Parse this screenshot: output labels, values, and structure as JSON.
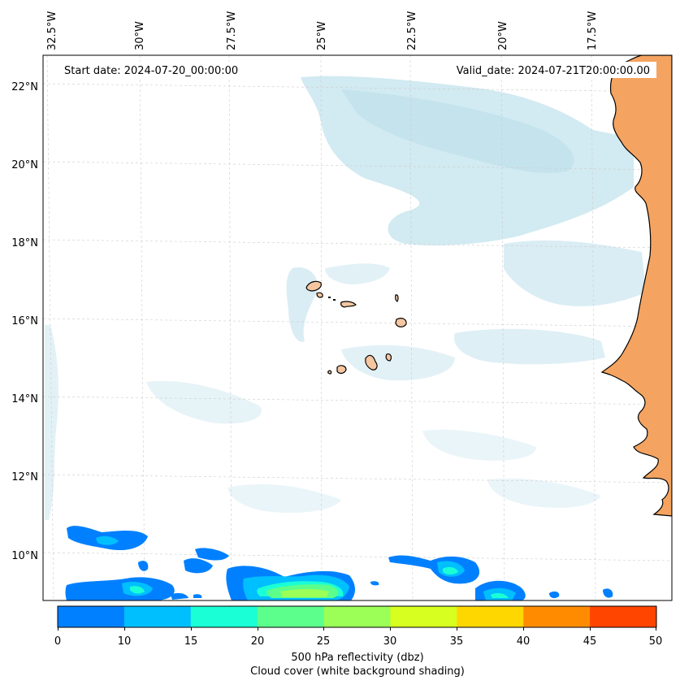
{
  "map": {
    "start_label": "Start date: 2024-07-20_00:00:00",
    "valid_label": "Valid_date: 2024-07-21T20:00:00.00",
    "lon_labels": [
      "32.5°W",
      "30°W",
      "27.5°W",
      "25°W",
      "22.5°W",
      "20°W",
      "17.5°W"
    ],
    "lat_labels": [
      "22°N",
      "20°N",
      "18°N",
      "16°N",
      "14°N",
      "12°N",
      "10°N"
    ],
    "colors": {
      "land": "#f4a460",
      "island": "#f5c6a0",
      "cloud": "#add8e6",
      "grid": "#cccccc"
    }
  },
  "colorbar": {
    "ticks": [
      "0",
      "10",
      "15",
      "20",
      "25",
      "30",
      "35",
      "40",
      "45",
      "50"
    ],
    "colors": [
      "#0080ff",
      "#00bfff",
      "#1affd5",
      "#5cff8c",
      "#9bff57",
      "#d7ff1f",
      "#ffd700",
      "#ff8c00",
      "#ff4500"
    ],
    "label_line1": "500 hPa reflectivity (dbz)",
    "label_line2": "Cloud cover (white background shading)"
  }
}
